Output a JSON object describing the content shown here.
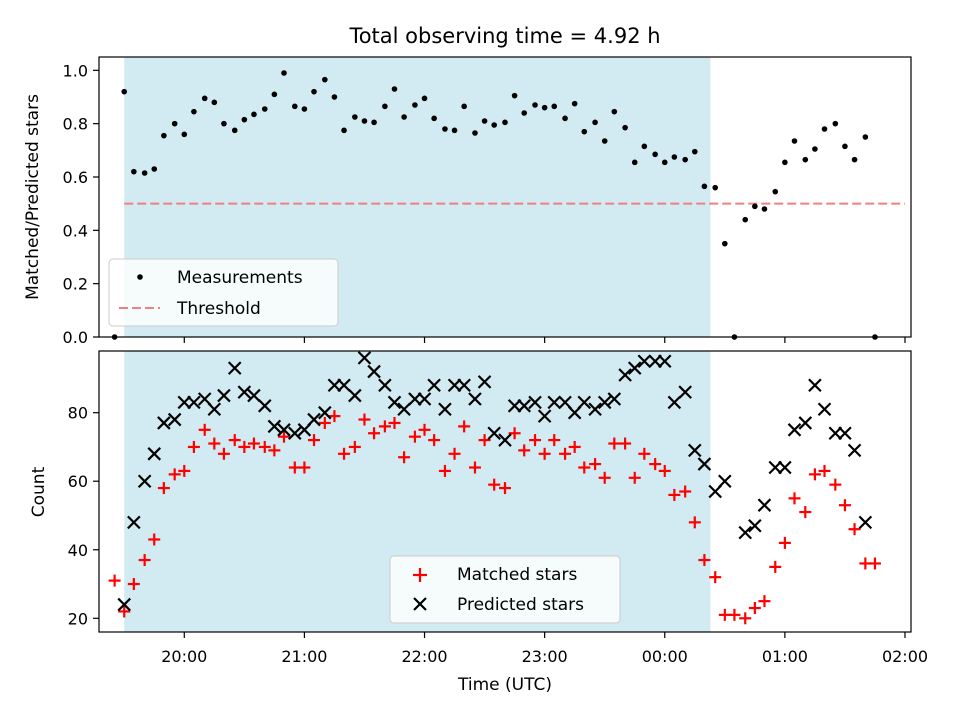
{
  "title": "Total observing time = 4.92 h",
  "colors": {
    "shade": "#add8e6",
    "threshold": "#f08080",
    "matched": "#ff0000",
    "predicted": "#000000",
    "measure": "#000000"
  },
  "chart_data": [
    {
      "type": "scatter",
      "ylabel": "Matched/Predicted stars",
      "ylim": [
        0,
        1.05
      ],
      "yticks": [
        "0.0",
        "0.2",
        "0.4",
        "0.6",
        "0.8",
        "1.0"
      ],
      "ytick_values": [
        0,
        0.2,
        0.4,
        0.6,
        0.8,
        1.0
      ],
      "xlim_hours": [
        19.29,
        26.05
      ],
      "shaded_span_hours": [
        19.5,
        24.38
      ],
      "legend": {
        "placement": "lower-left",
        "entries": [
          "Measurements",
          "Threshold"
        ]
      },
      "threshold": {
        "name": "Threshold",
        "value": 0.5,
        "x_hours": [
          19.5,
          26.0
        ]
      },
      "series": [
        {
          "name": "Measurements",
          "x_hours": [
            19.42,
            19.5,
            19.58,
            19.67,
            19.75,
            19.83,
            19.92,
            20.0,
            20.08,
            20.17,
            20.25,
            20.33,
            20.42,
            20.5,
            20.58,
            20.67,
            20.75,
            20.83,
            20.92,
            21.0,
            21.08,
            21.17,
            21.25,
            21.33,
            21.42,
            21.5,
            21.58,
            21.67,
            21.75,
            21.83,
            21.92,
            22.0,
            22.08,
            22.17,
            22.25,
            22.33,
            22.42,
            22.5,
            22.58,
            22.67,
            22.75,
            22.83,
            22.92,
            23.0,
            23.08,
            23.17,
            23.25,
            23.33,
            23.42,
            23.5,
            23.58,
            23.67,
            23.75,
            23.83,
            23.92,
            24.0,
            24.08,
            24.17,
            24.25,
            24.33,
            24.42,
            24.5,
            24.58,
            24.67,
            24.75,
            24.83,
            24.92,
            25.0,
            25.08,
            25.17,
            25.25,
            25.33,
            25.42,
            25.5,
            25.58,
            25.67,
            25.75
          ],
          "values": [
            0.0,
            0.92,
            0.62,
            0.615,
            0.63,
            0.755,
            0.8,
            0.76,
            0.845,
            0.895,
            0.88,
            0.8,
            0.775,
            0.815,
            0.835,
            0.855,
            0.91,
            0.99,
            0.865,
            0.855,
            0.92,
            0.965,
            0.9,
            0.775,
            0.825,
            0.81,
            0.805,
            0.865,
            0.93,
            0.825,
            0.87,
            0.895,
            0.82,
            0.78,
            0.775,
            0.865,
            0.765,
            0.81,
            0.795,
            0.805,
            0.905,
            0.84,
            0.87,
            0.86,
            0.865,
            0.82,
            0.875,
            0.77,
            0.805,
            0.735,
            0.845,
            0.785,
            0.655,
            0.715,
            0.685,
            0.655,
            0.675,
            0.665,
            0.695,
            0.565,
            0.56,
            0.35,
            0.0,
            0.44,
            0.49,
            0.48,
            0.545,
            0.655,
            0.735,
            0.665,
            0.705,
            0.78,
            0.8,
            0.715,
            0.665,
            0.75,
            0.0
          ]
        }
      ]
    },
    {
      "type": "scatter",
      "ylabel": "Count",
      "xlabel": "Time (UTC)",
      "ylim": [
        16,
        98
      ],
      "yticks": [
        "20",
        "40",
        "60",
        "80"
      ],
      "ytick_values": [
        20,
        40,
        60,
        80
      ],
      "xticks": [
        "20:00",
        "21:00",
        "22:00",
        "23:00",
        "00:00",
        "01:00",
        "02:00"
      ],
      "xtick_hours": [
        20,
        21,
        22,
        23,
        24,
        25,
        26
      ],
      "xlim_hours": [
        19.29,
        26.05
      ],
      "shaded_span_hours": [
        19.5,
        24.38
      ],
      "legend": {
        "placement": "lower-center",
        "entries": [
          "Matched stars",
          "Predicted stars"
        ]
      },
      "series": [
        {
          "name": "Matched stars",
          "x_hours": [
            19.42,
            19.5,
            19.58,
            19.67,
            19.75,
            19.83,
            19.92,
            20.0,
            20.08,
            20.17,
            20.25,
            20.33,
            20.42,
            20.5,
            20.58,
            20.67,
            20.75,
            20.83,
            20.92,
            21.0,
            21.08,
            21.17,
            21.25,
            21.33,
            21.42,
            21.5,
            21.58,
            21.67,
            21.75,
            21.83,
            21.92,
            22.0,
            22.08,
            22.17,
            22.25,
            22.33,
            22.42,
            22.5,
            22.58,
            22.67,
            22.75,
            22.83,
            22.92,
            23.0,
            23.08,
            23.17,
            23.25,
            23.33,
            23.42,
            23.5,
            23.58,
            23.67,
            23.75,
            23.83,
            23.92,
            24.0,
            24.08,
            24.17,
            24.25,
            24.33,
            24.42,
            24.5,
            24.58,
            24.67,
            24.75,
            24.83,
            24.92,
            25.0,
            25.08,
            25.17,
            25.25,
            25.33,
            25.42,
            25.5,
            25.58,
            25.67,
            25.75
          ],
          "values": [
            31,
            22,
            30,
            37,
            43,
            58,
            62,
            63,
            70,
            75,
            71,
            68,
            72,
            70,
            71,
            70,
            69,
            73,
            64,
            64,
            72,
            77,
            79,
            68,
            70,
            78,
            74,
            76,
            77,
            67,
            73,
            75,
            72,
            63,
            68,
            76,
            64,
            72,
            59,
            58,
            74,
            69,
            72,
            68,
            72,
            68,
            70,
            64,
            65,
            61,
            71,
            71,
            61,
            68,
            65,
            63,
            56,
            57,
            48,
            37,
            32,
            21,
            21,
            20,
            23,
            25,
            35,
            42,
            55,
            51,
            62,
            63,
            59,
            53,
            46,
            36,
            36
          ]
        },
        {
          "name": "Predicted stars",
          "x_hours": [
            19.5,
            19.58,
            19.67,
            19.75,
            19.83,
            19.92,
            20.0,
            20.08,
            20.17,
            20.25,
            20.33,
            20.42,
            20.5,
            20.58,
            20.67,
            20.75,
            20.83,
            20.92,
            21.0,
            21.08,
            21.17,
            21.25,
            21.33,
            21.42,
            21.5,
            21.58,
            21.67,
            21.75,
            21.83,
            21.92,
            22.0,
            22.08,
            22.17,
            22.25,
            22.33,
            22.42,
            22.5,
            22.58,
            22.67,
            22.75,
            22.83,
            22.92,
            23.0,
            23.08,
            23.17,
            23.25,
            23.33,
            23.42,
            23.5,
            23.58,
            23.67,
            23.75,
            23.83,
            23.92,
            24.0,
            24.08,
            24.17,
            24.25,
            24.33,
            24.42,
            24.5,
            24.67,
            24.75,
            24.83,
            24.92,
            25.0,
            25.08,
            25.17,
            25.25,
            25.33,
            25.42,
            25.5,
            25.58,
            25.67
          ],
          "values": [
            24,
            48,
            60,
            68,
            77,
            78,
            83,
            83,
            84,
            81,
            85,
            93,
            86,
            85,
            82,
            76,
            75,
            74,
            75,
            78,
            80,
            88,
            88,
            85,
            96,
            92,
            88,
            83,
            81,
            84,
            84,
            88,
            81,
            88,
            88,
            84,
            89,
            74,
            72,
            82,
            82,
            83,
            79,
            83,
            83,
            80,
            83,
            81,
            83,
            84,
            91,
            93,
            95,
            95,
            95,
            83,
            86,
            69,
            65,
            57,
            60,
            45,
            47,
            53,
            64,
            64,
            75,
            77,
            88,
            81,
            74,
            74,
            69,
            48
          ]
        }
      ]
    }
  ]
}
